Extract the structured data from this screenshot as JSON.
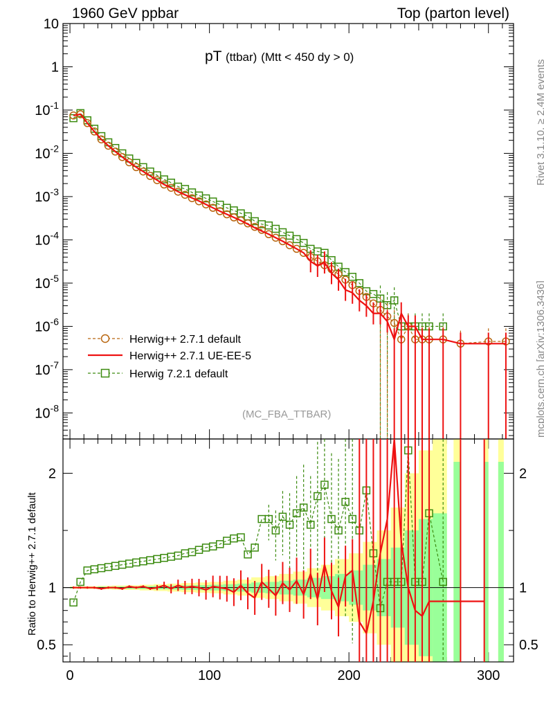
{
  "header": {
    "left": "1960 GeV ppbar",
    "right": "Top (parton level)"
  },
  "side_text": {
    "rivet": "Rivet 3.1.10, ≥ 2.4M events",
    "source": "mcplots.cern.ch [arXiv:1306.3436]"
  },
  "analysis_tag": "(MC_FBA_TTBAR)",
  "ratio_ylabel": "Ratio to Herwig++ 2.7.1 default",
  "chart_data": [
    {
      "type": "line",
      "panel": "main",
      "title_main": "pT",
      "title_sub": "(ttbar)",
      "title_cut": "(Mtt < 450 dy > 0)",
      "xlabel": "",
      "ylabel": "",
      "y_scale": "log",
      "xlim": [
        -5,
        318
      ],
      "ylim": [
        2.5e-09,
        10
      ],
      "y_ticks": [
        "10^-8",
        "10^-7",
        "10^-6",
        "10^-5",
        "10^-4",
        "10^-3",
        "10^-2",
        "10^-1",
        "1",
        "10"
      ],
      "x_ticks": [
        "0",
        "100",
        "200",
        "300"
      ],
      "legend_position": "middle-left",
      "series": [
        {
          "name": "Herwig++ 2.7.1 default",
          "color": "#b8650e",
          "style": "dashed, open circles",
          "x": [
            2.5,
            7.5,
            12.5,
            17.5,
            22.5,
            27.5,
            32.5,
            37.5,
            42.5,
            47.5,
            52.5,
            57.5,
            62.5,
            67.5,
            72.5,
            77.5,
            82.5,
            87.5,
            92.5,
            97.5,
            102.5,
            107.5,
            112.5,
            117.5,
            122.5,
            127.5,
            132.5,
            137.5,
            142.5,
            147.5,
            152.5,
            157.5,
            162.5,
            167.5,
            172.5,
            177.5,
            182.5,
            187.5,
            192.5,
            197.5,
            202.5,
            207.5,
            212.5,
            217.5,
            222.5,
            227.5,
            232.5,
            237.5,
            242.5,
            247.5,
            252.5,
            257.5,
            267.5,
            280,
            300,
            312.5
          ],
          "y": [
            0.075,
            0.08,
            0.05,
            0.032,
            0.021,
            0.015,
            0.011,
            0.0082,
            0.0062,
            0.0048,
            0.0038,
            0.003,
            0.0024,
            0.0019,
            0.0016,
            0.0013,
            0.0011,
            0.00092,
            0.00078,
            0.00066,
            0.00055,
            0.00046,
            0.00039,
            0.00033,
            0.00028,
            0.00024,
            0.0002,
            0.00017,
            0.000135,
            0.000112,
            9.3e-05,
            7.5e-05,
            6.2e-05,
            5e-05,
            4e-05,
            3.2e-05,
            2.6e-05,
            2.1e-05,
            1.6e-05,
            1.2e-05,
            9e-06,
            6.6e-06,
            4.8e-06,
            3.4e-06,
            2.4e-06,
            1.7e-06,
            1.2e-06,
            5e-07,
            1e-06,
            5e-07,
            5e-07,
            5e-07,
            5e-07,
            4e-07,
            4.5e-07,
            4.5e-07
          ]
        },
        {
          "name": "Herwig++ 2.7.1 UE-EE-5",
          "color": "#ee1111",
          "style": "solid line",
          "x": [
            2.5,
            7.5,
            12.5,
            17.5,
            22.5,
            27.5,
            32.5,
            37.5,
            42.5,
            47.5,
            52.5,
            57.5,
            62.5,
            67.5,
            72.5,
            77.5,
            82.5,
            87.5,
            92.5,
            97.5,
            102.5,
            107.5,
            112.5,
            117.5,
            122.5,
            127.5,
            132.5,
            137.5,
            142.5,
            147.5,
            152.5,
            157.5,
            162.5,
            167.5,
            172.5,
            177.5,
            182.5,
            187.5,
            192.5,
            197.5,
            202.5,
            207.5,
            212.5,
            217.5,
            222.5,
            227.5,
            232.5,
            237.5,
            242.5,
            247.5,
            252.5,
            257.5,
            267.5,
            280,
            300,
            312.5
          ],
          "y": [
            0.075,
            0.08,
            0.05,
            0.032,
            0.021,
            0.015,
            0.011,
            0.0082,
            0.0062,
            0.0048,
            0.0038,
            0.003,
            0.0024,
            0.0019,
            0.0016,
            0.0013,
            0.0011,
            0.00093,
            0.00079,
            0.00066,
            0.00055,
            0.00046,
            0.00039,
            0.00033,
            0.00028,
            0.00023,
            0.00019,
            0.00016,
            0.000135,
            0.000112,
            9.3e-05,
            7.6e-05,
            6.2e-05,
            5e-05,
            3.2e-05,
            2.5e-05,
            3e-05,
            1.7e-05,
            1.2e-05,
            7e-06,
            6e-06,
            4e-06,
            3e-06,
            2e-06,
            2e-06,
            1.3e-06,
            5e-07,
            2e-06,
            1e-06,
            1e-06,
            5e-07,
            5e-07,
            5e-07,
            4e-07,
            4e-07,
            4e-07
          ]
        },
        {
          "name": "Herwig 7.2.1 default",
          "color": "#3a8a0e",
          "style": "dashed, open squares",
          "x": [
            2.5,
            7.5,
            12.5,
            17.5,
            22.5,
            27.5,
            32.5,
            37.5,
            42.5,
            47.5,
            52.5,
            57.5,
            62.5,
            67.5,
            72.5,
            77.5,
            82.5,
            87.5,
            92.5,
            97.5,
            102.5,
            107.5,
            112.5,
            117.5,
            122.5,
            127.5,
            132.5,
            137.5,
            142.5,
            147.5,
            152.5,
            157.5,
            162.5,
            167.5,
            172.5,
            177.5,
            182.5,
            187.5,
            192.5,
            197.5,
            202.5,
            207.5,
            212.5,
            217.5,
            222.5,
            227.5,
            232.5,
            237.5,
            242.5,
            247.5,
            252.5,
            257.5,
            267.5
          ],
          "y": [
            0.065,
            0.085,
            0.058,
            0.037,
            0.025,
            0.018,
            0.0133,
            0.01,
            0.0076,
            0.006,
            0.0048,
            0.0038,
            0.0031,
            0.0025,
            0.0021,
            0.0017,
            0.0015,
            0.00125,
            0.00106,
            0.00091,
            0.00077,
            0.00065,
            0.00055,
            0.00048,
            0.00041,
            0.00035,
            0.00027,
            0.00023,
            0.000215,
            0.00018,
            0.00015,
            0.000125,
            0.000104,
            8.5e-05,
            6.2e-05,
            5.4e-05,
            5e-05,
            3.4e-05,
            2.4e-05,
            1.8e-05,
            1.4e-05,
            1e-05,
            6.5e-06,
            5.6e-06,
            4.4e-06,
            3.1e-06,
            4e-06,
            1e-06,
            1e-06,
            1e-06,
            1e-06,
            1e-06,
            1e-06
          ]
        }
      ]
    },
    {
      "type": "line",
      "panel": "ratio",
      "ylabel": "Ratio to Herwig++ 2.7.1 default",
      "y_scale": "linear",
      "xlim": [
        -5,
        318
      ],
      "ylim": [
        0.35,
        2.3
      ],
      "y_ticks": [
        "0.5",
        "1",
        "2"
      ],
      "x_ticks": [
        "0",
        "100",
        "200",
        "300"
      ],
      "reference_line": 1,
      "band": {
        "x": [
          0,
          10,
          20,
          30,
          40,
          50,
          60,
          70,
          80,
          90,
          100,
          110,
          120,
          130,
          140,
          150,
          160,
          170,
          180,
          190,
          200,
          210,
          220,
          230,
          240,
          250,
          260
        ],
        "yellow_half_width": [
          0.01,
          0.012,
          0.015,
          0.018,
          0.02,
          0.025,
          0.03,
          0.035,
          0.04,
          0.045,
          0.05,
          0.06,
          0.07,
          0.09,
          0.1,
          0.12,
          0.14,
          0.17,
          0.2,
          0.25,
          0.3,
          0.4,
          0.5,
          0.7,
          1.0,
          1.2,
          1.3
        ],
        "green_half_width": [
          0.005,
          0.006,
          0.008,
          0.009,
          0.01,
          0.012,
          0.015,
          0.017,
          0.02,
          0.022,
          0.025,
          0.03,
          0.035,
          0.045,
          0.05,
          0.06,
          0.07,
          0.085,
          0.1,
          0.12,
          0.15,
          0.2,
          0.25,
          0.35,
          0.5,
          0.6,
          0.65
        ]
      },
      "series": [
        {
          "name": "Herwig++ 2.7.1 UE-EE-5",
          "color": "#ee1111",
          "x": [
            2.5,
            7.5,
            12.5,
            17.5,
            22.5,
            27.5,
            32.5,
            37.5,
            42.5,
            47.5,
            52.5,
            57.5,
            62.5,
            67.5,
            72.5,
            77.5,
            82.5,
            87.5,
            92.5,
            97.5,
            102.5,
            107.5,
            112.5,
            117.5,
            122.5,
            127.5,
            132.5,
            137.5,
            142.5,
            147.5,
            152.5,
            157.5,
            162.5,
            167.5,
            172.5,
            177.5,
            182.5,
            187.5,
            192.5,
            197.5,
            202.5,
            207.5,
            212.5,
            217.5,
            222.5,
            227.5,
            232.5,
            237.5,
            242.5,
            247.5,
            252.5,
            257.5,
            280,
            297
          ],
          "y": [
            1.0,
            1.0,
            1.0,
            1.0,
            0.99,
            1.0,
            1.0,
            0.99,
            1.01,
            1.0,
            1.01,
            0.99,
            1.0,
            1.02,
            0.99,
            1.02,
            1.0,
            1.01,
            1.0,
            0.98,
            1.01,
            1.0,
            0.99,
            0.96,
            1.02,
            0.95,
            0.91,
            1.05,
            0.99,
            0.93,
            1.04,
            0.98,
            1.06,
            0.94,
            1.12,
            0.9,
            1.2,
            0.97,
            0.83,
            1.1,
            1.15,
            0.7,
            0.6,
            0.88,
            1.3,
            1.6,
            2.3,
            1.4,
            1.0,
            0.8,
            0.75,
            0.88,
            0.88,
            0.88
          ]
        },
        {
          "name": "Herwig 7.2.1 default",
          "color": "#3a8a0e",
          "x": [
            2.5,
            7.5,
            12.5,
            17.5,
            22.5,
            27.5,
            32.5,
            37.5,
            42.5,
            47.5,
            52.5,
            57.5,
            62.5,
            67.5,
            72.5,
            77.5,
            82.5,
            87.5,
            92.5,
            97.5,
            102.5,
            107.5,
            112.5,
            117.5,
            122.5,
            127.5,
            132.5,
            137.5,
            142.5,
            147.5,
            152.5,
            157.5,
            162.5,
            167.5,
            172.5,
            177.5,
            182.5,
            187.5,
            192.5,
            197.5,
            202.5,
            207.5,
            212.5,
            217.5,
            222.5,
            227.5,
            232.5,
            237.5,
            242.5,
            247.5,
            252.5,
            257.5,
            267.5
          ],
          "y": [
            0.87,
            1.05,
            1.15,
            1.16,
            1.17,
            1.18,
            1.19,
            1.2,
            1.21,
            1.22,
            1.23,
            1.24,
            1.25,
            1.26,
            1.27,
            1.28,
            1.3,
            1.31,
            1.33,
            1.35,
            1.36,
            1.38,
            1.41,
            1.43,
            1.44,
            1.29,
            1.35,
            1.6,
            1.6,
            1.5,
            1.62,
            1.55,
            1.65,
            1.7,
            1.55,
            1.8,
            1.9,
            1.6,
            1.5,
            1.75,
            1.6,
            1.5,
            1.85,
            1.3,
            0.82,
            1.05,
            1.05,
            1.05,
            2.2,
            1.05,
            1.05,
            1.65,
            1.05
          ]
        }
      ]
    }
  ]
}
